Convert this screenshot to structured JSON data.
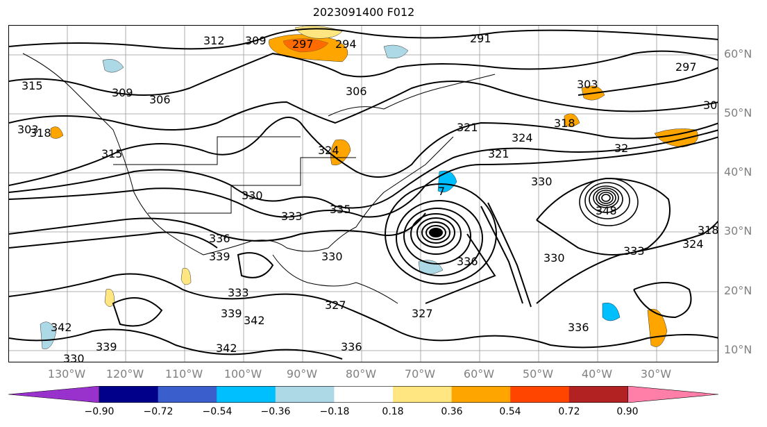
{
  "title": "2023091400 F012",
  "latitude_labels": [
    "60°N",
    "50°N",
    "40°N",
    "30°N",
    "20°N",
    "10°N"
  ],
  "longitude_labels": [
    "130°W",
    "120°W",
    "110°W",
    "100°W",
    "90°W",
    "80°W",
    "70°W",
    "60°W",
    "50°W",
    "40°W",
    "30°W"
  ],
  "contour_labels": [
    "312",
    "309",
    "297",
    "294",
    "291",
    "297",
    "303",
    "315",
    "306",
    "309",
    "306",
    "318",
    "315",
    "303",
    "324",
    "321",
    "330",
    "318",
    "324",
    "321",
    "330",
    "333",
    "335",
    "336",
    "339",
    "330",
    "327",
    "333",
    "330",
    "336",
    "339",
    "342",
    "342",
    "342",
    "339",
    "336",
    "330",
    "327",
    "336",
    "333",
    "318",
    "324",
    "30",
    "32",
    "348",
    "7"
  ],
  "colorbar": {
    "ticks": [
      "−0.90",
      "−0.72",
      "−0.54",
      "−0.36",
      "−0.18",
      "0.18",
      "0.36",
      "0.54",
      "0.72",
      "0.90"
    ],
    "colors": [
      "#9932cc",
      "#00008b",
      "#3a5fcd",
      "#00bfff",
      "#add8e6",
      "#ffffff",
      "#ffe680",
      "#ffa500",
      "#ff4500",
      "#b22222",
      "#ff7fa8"
    ]
  }
}
